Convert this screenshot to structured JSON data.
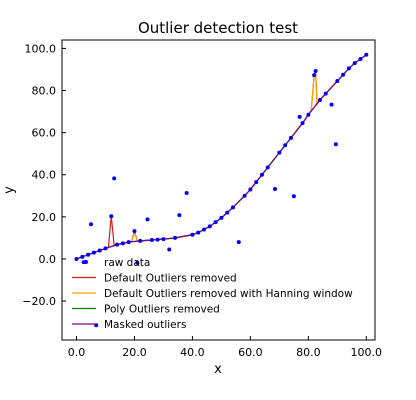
{
  "chart_data": {
    "type": "line",
    "title": "Outlier detection test",
    "xlabel": "x",
    "ylabel": "y",
    "xlim": [
      -5,
      103
    ],
    "ylim": [
      -38.5,
      104
    ],
    "xticks": [
      0,
      20,
      40,
      60,
      80,
      100
    ],
    "xtick_labels": [
      "0.0",
      "20.0",
      "40.0",
      "60.0",
      "80.0",
      "100.0"
    ],
    "yticks": [
      -20,
      0,
      20,
      40,
      60,
      80,
      100
    ],
    "ytick_labels": [
      "−20.0",
      "0.0",
      "20.0",
      "40.0",
      "60.0",
      "80.0",
      "100.0"
    ],
    "grid": false,
    "legend_position": "lower-right",
    "raw_outliers": [
      {
        "x": 2.5,
        "y": -1.5
      },
      {
        "x": 5,
        "y": 16.5
      },
      {
        "x": 6.8,
        "y": -31.5
      },
      {
        "x": 12,
        "y": 20.3
      },
      {
        "x": 13,
        "y": 38.3
      },
      {
        "x": 20,
        "y": 13.2
      },
      {
        "x": 21,
        "y": -1.8
      },
      {
        "x": 24.5,
        "y": 18.8
      },
      {
        "x": 32,
        "y": 4.5
      },
      {
        "x": 35.5,
        "y": 20.8
      },
      {
        "x": 38,
        "y": 31.3
      },
      {
        "x": 56,
        "y": 8
      },
      {
        "x": 68.5,
        "y": 33.2
      },
      {
        "x": 75,
        "y": 29.8
      },
      {
        "x": 77,
        "y": 67.5
      },
      {
        "x": 82,
        "y": 87.3
      },
      {
        "x": 82.5,
        "y": 89.3
      },
      {
        "x": 88,
        "y": 73.3
      },
      {
        "x": 89.5,
        "y": 54.5
      }
    ],
    "series": [
      {
        "name": "raw data",
        "style": "points",
        "color": "#0000ff",
        "x": [
          0,
          2,
          4,
          6,
          8,
          10,
          14,
          16,
          18,
          22,
          26,
          28,
          30,
          34,
          40,
          42,
          44,
          46,
          48,
          50,
          52,
          54,
          58,
          60,
          62,
          64,
          66,
          70,
          72,
          74,
          78,
          80,
          84,
          86,
          90,
          92,
          94,
          96,
          98,
          100
        ],
        "y": [
          0,
          1,
          2,
          3,
          4,
          5,
          6.8,
          7.4,
          8,
          8.6,
          9,
          9.2,
          9.4,
          10,
          11.5,
          12.5,
          14,
          15.5,
          17.5,
          19.5,
          22,
          24.5,
          30,
          33,
          36.5,
          40,
          43.5,
          50.5,
          54,
          57.5,
          64.5,
          68.5,
          75.5,
          78.5,
          84.5,
          87.5,
          90.5,
          93,
          95,
          97
        ]
      },
      {
        "name": "Default Outliers removed",
        "style": "line",
        "color": "#d81b1b",
        "x": [
          0,
          2,
          4,
          6,
          8,
          10,
          11,
          12,
          13,
          14,
          16,
          18,
          19,
          20,
          21,
          22,
          26,
          28,
          30,
          34,
          40,
          42,
          44,
          46,
          48,
          50,
          52,
          54,
          58,
          60,
          62,
          64,
          66,
          70,
          72,
          74,
          78,
          80,
          81,
          82,
          82.5,
          83,
          84,
          86,
          90,
          92,
          94,
          96,
          98,
          100
        ],
        "y": [
          0,
          1,
          2,
          3,
          4,
          5,
          5.5,
          20.3,
          6.3,
          6.8,
          7.4,
          8,
          8.3,
          13.2,
          8.5,
          8.6,
          9,
          9.2,
          9.4,
          10,
          11.5,
          12.5,
          14,
          15.5,
          17.5,
          19.5,
          22,
          24.5,
          30,
          33,
          36.5,
          40,
          43.5,
          50.5,
          54,
          57.5,
          64.5,
          68.5,
          70.5,
          87.3,
          89.3,
          73.5,
          75.5,
          78.5,
          84.5,
          87.5,
          90.5,
          93,
          95,
          97
        ]
      },
      {
        "name": "Default Outliers removed with Hanning window",
        "style": "line",
        "color": "#ffa500",
        "x": [
          0,
          2,
          4,
          6,
          8,
          10,
          14,
          16,
          18,
          19,
          20,
          21,
          22,
          26,
          28,
          30,
          34,
          40,
          42,
          44,
          46,
          48,
          50,
          52,
          54,
          58,
          60,
          62,
          64,
          66,
          70,
          72,
          74,
          78,
          80,
          81,
          82,
          82.5,
          83,
          84,
          86,
          90,
          92,
          94,
          96,
          98,
          100
        ],
        "y": [
          0,
          1,
          2,
          3,
          4,
          5,
          6.8,
          7.4,
          8,
          8.3,
          12.5,
          8.5,
          8.6,
          9,
          9.2,
          9.4,
          10,
          11.5,
          12.5,
          14,
          15.5,
          17.5,
          19.5,
          22,
          24.5,
          30,
          33,
          36.5,
          40,
          43.5,
          50.5,
          54,
          57.5,
          64.5,
          68.5,
          70.5,
          87.3,
          89.3,
          73.5,
          75.5,
          78.5,
          84.5,
          87.5,
          90.5,
          93,
          95,
          97
        ]
      },
      {
        "name": "Poly Outliers removed",
        "style": "line",
        "color": "#008000",
        "x": [
          0,
          2,
          4,
          6,
          8,
          10,
          14,
          16,
          18,
          22,
          26,
          28,
          30,
          34,
          40,
          42,
          44,
          46,
          48,
          50,
          52,
          54,
          58,
          60,
          62,
          64,
          66,
          70,
          72,
          74,
          78,
          80,
          84,
          86,
          90,
          92,
          94,
          96,
          98,
          100
        ],
        "y": [
          0,
          1,
          2,
          3,
          4,
          5,
          6.8,
          7.4,
          8,
          8.6,
          9,
          9.2,
          9.4,
          10,
          11.5,
          12.5,
          14,
          15.5,
          17.5,
          19.5,
          22,
          24.5,
          30,
          33,
          36.5,
          40,
          43.5,
          50.5,
          54,
          57.5,
          64.5,
          68.5,
          75.5,
          78.5,
          84.5,
          87.5,
          90.5,
          93,
          95,
          97
        ]
      },
      {
        "name": "Masked outliers",
        "style": "line",
        "color": "#800080",
        "x": [
          0,
          2,
          4,
          6,
          8,
          10,
          14,
          16,
          18,
          22,
          26,
          28,
          30,
          34,
          40,
          42,
          44,
          46,
          48,
          50,
          52,
          54,
          58,
          60,
          62,
          64,
          66,
          70,
          72,
          74,
          78,
          80,
          84,
          86,
          90,
          92,
          94,
          96,
          98,
          100
        ],
        "y": [
          0,
          1,
          2,
          3,
          4,
          5,
          6.8,
          7.4,
          8,
          8.6,
          9,
          9.2,
          9.4,
          10,
          11.5,
          12.5,
          14,
          15.5,
          17.5,
          19.5,
          22,
          24.5,
          30,
          33,
          36.5,
          40,
          43.5,
          50.5,
          54,
          57.5,
          64.5,
          68.5,
          75.5,
          78.5,
          84.5,
          87.5,
          90.5,
          93,
          95,
          97
        ]
      }
    ]
  }
}
